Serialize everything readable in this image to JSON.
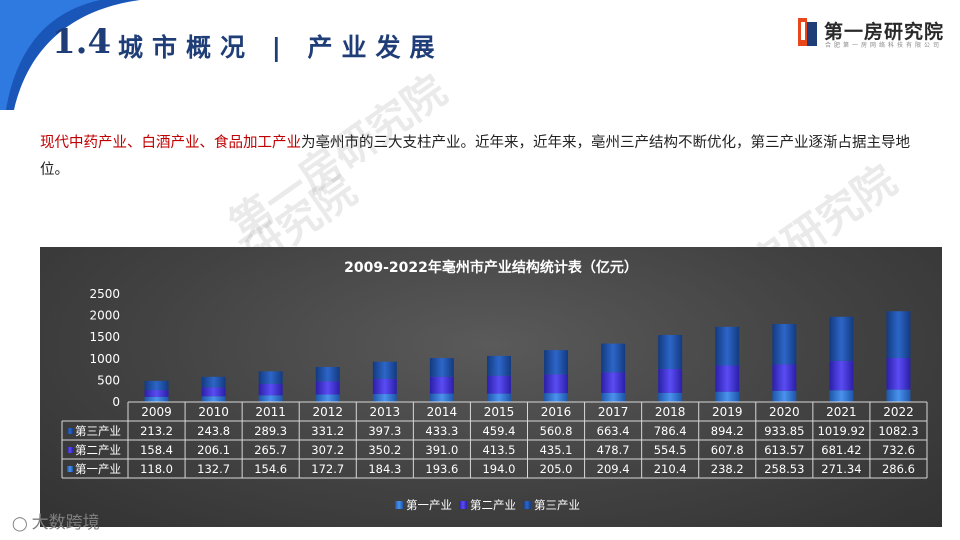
{
  "header": {
    "section_number": "1.4",
    "section_title": "城市概况 | 产业发展"
  },
  "brand": {
    "name": "第一房研究院",
    "tagline": "合肥第一房网络科技有限公司",
    "primary_color": "#1f3e78",
    "accent_color": "#e8471c"
  },
  "watermark_text": "第一房研究院",
  "intro": {
    "highlight": "现代中药产业、白酒产业、食品加工产业",
    "body": "为亳州市的三大支柱产业。近年来，近年来，亳州三产结构不断优化，第三产业逐渐占据主导地位。"
  },
  "credit": {
    "icon": "camera-icon",
    "text": "大数跨境"
  },
  "chart_data": {
    "type": "bar",
    "stacked": true,
    "title": "2009-2022年亳州市产业结构统计表（亿元）",
    "categories": [
      "2009",
      "2010",
      "2011",
      "2012",
      "2013",
      "2014",
      "2015",
      "2016",
      "2017",
      "2018",
      "2019",
      "2020",
      "2021",
      "2022"
    ],
    "ylim": [
      0,
      2500
    ],
    "yticks": [
      "0",
      "500",
      "1000",
      "1500",
      "2000",
      "2500"
    ],
    "yticks_values": [
      0,
      500,
      1000,
      1500,
      2000,
      2500
    ],
    "grid": false,
    "legend_position": "bottom",
    "series": [
      {
        "name": "第一产业",
        "color": "#2a6fc9",
        "values": [
          118.0,
          132.7,
          154.6,
          172.7,
          184.3,
          193.6,
          194.0,
          205.0,
          209.4,
          210.4,
          238.2,
          258.53,
          271.34,
          286.6
        ],
        "labels": [
          "118.0",
          "132.7",
          "154.6",
          "172.7",
          "184.3",
          "193.6",
          "194.0",
          "205.0",
          "209.4",
          "210.4",
          "238.2",
          "258.53",
          "271.34",
          "286.6"
        ]
      },
      {
        "name": "第二产业",
        "color": "#3d2fd6",
        "values": [
          158.4,
          206.1,
          265.7,
          307.2,
          350.2,
          391.0,
          413.5,
          435.1,
          478.7,
          554.5,
          607.8,
          613.57,
          681.42,
          732.6
        ],
        "labels": [
          "158.4",
          "206.1",
          "265.7",
          "307.2",
          "350.2",
          "391.0",
          "413.5",
          "435.1",
          "478.7",
          "554.5",
          "607.8",
          "613.57",
          "681.42",
          "732.6"
        ]
      },
      {
        "name": "第三产业",
        "color": "#1f4fa6",
        "values": [
          213.2,
          243.8,
          289.3,
          331.2,
          397.3,
          433.3,
          459.4,
          560.8,
          663.4,
          786.4,
          894.2,
          933.85,
          1019.92,
          1082.3
        ],
        "labels": [
          "213.2",
          "243.8",
          "289.3",
          "331.2",
          "397.3",
          "433.3",
          "459.4",
          "560.8",
          "663.4",
          "786.4",
          "894.2",
          "933.85",
          "1019.92",
          "1082.3"
        ]
      }
    ],
    "table_row_order": [
      "第三产业",
      "第二产业",
      "第一产业"
    ]
  }
}
